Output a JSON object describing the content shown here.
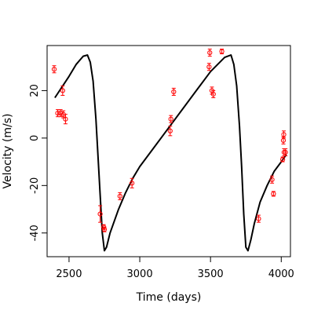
{
  "chart_data": {
    "type": "scatter",
    "xlabel": "Time (days)",
    "ylabel": "Velocity (m/s)",
    "xlim": [
      2345,
      4065
    ],
    "ylim": [
      -50,
      39
    ],
    "xticks": [
      2500,
      3000,
      3500,
      4000
    ],
    "yticks": [
      -40,
      -20,
      0,
      20
    ],
    "grid": false,
    "colors": {
      "points": "#ff0000",
      "curve": "#000000"
    },
    "series": [
      {
        "type": "scatter",
        "points": [
          {
            "x": 2395,
            "y": 29,
            "err": 1.5
          },
          {
            "x": 2420,
            "y": 10.5,
            "err": 1.5
          },
          {
            "x": 2440,
            "y": 10.5,
            "err": 1.5
          },
          {
            "x": 2455,
            "y": 20,
            "err": 2
          },
          {
            "x": 2460,
            "y": 10,
            "err": 1.5
          },
          {
            "x": 2475,
            "y": 8,
            "err": 2
          },
          {
            "x": 2720,
            "y": -32,
            "err": 3.5
          },
          {
            "x": 2745,
            "y": -37.5,
            "err": 1
          },
          {
            "x": 2750,
            "y": -38.5,
            "err": 1
          },
          {
            "x": 2860,
            "y": -24.5,
            "err": 1.5
          },
          {
            "x": 2945,
            "y": -19,
            "err": 2
          },
          {
            "x": 3215,
            "y": 3,
            "err": 2
          },
          {
            "x": 3220,
            "y": 8,
            "err": 1.5
          },
          {
            "x": 3240,
            "y": 19.5,
            "err": 1.5
          },
          {
            "x": 3490,
            "y": 30,
            "err": 1.5
          },
          {
            "x": 3495,
            "y": 36,
            "err": 1.5
          },
          {
            "x": 3510,
            "y": 20,
            "err": 1.5
          },
          {
            "x": 3520,
            "y": 18.5,
            "err": 1.5
          },
          {
            "x": 3580,
            "y": 36.5,
            "err": 1
          },
          {
            "x": 3840,
            "y": -34,
            "err": 1.5
          },
          {
            "x": 3935,
            "y": -17.5,
            "err": 1.5
          },
          {
            "x": 3945,
            "y": -23.5,
            "err": 1
          },
          {
            "x": 4010,
            "y": -9,
            "err": 1
          },
          {
            "x": 4015,
            "y": -1,
            "err": 1.5
          },
          {
            "x": 4018,
            "y": 1.5,
            "err": 1.5
          },
          {
            "x": 4020,
            "y": -6,
            "err": 1.5
          },
          {
            "x": 4030,
            "y": -6,
            "err": 1.5
          }
        ]
      },
      {
        "type": "line",
        "points": [
          [
            2400,
            17
          ],
          [
            2450,
            21.5
          ],
          [
            2500,
            26
          ],
          [
            2550,
            31
          ],
          [
            2600,
            34.5
          ],
          [
            2630,
            35
          ],
          [
            2650,
            32
          ],
          [
            2670,
            24
          ],
          [
            2690,
            8
          ],
          [
            2705,
            -8
          ],
          [
            2720,
            -24
          ],
          [
            2735,
            -40
          ],
          [
            2750,
            -47.5
          ],
          [
            2765,
            -46
          ],
          [
            2790,
            -40
          ],
          [
            2850,
            -30
          ],
          [
            2900,
            -23
          ],
          [
            2950,
            -17
          ],
          [
            3000,
            -12
          ],
          [
            3100,
            -4
          ],
          [
            3200,
            4
          ],
          [
            3300,
            12
          ],
          [
            3400,
            20
          ],
          [
            3500,
            28
          ],
          [
            3600,
            34
          ],
          [
            3645,
            35
          ],
          [
            3665,
            31
          ],
          [
            3685,
            22
          ],
          [
            3705,
            5
          ],
          [
            3720,
            -12
          ],
          [
            3735,
            -32
          ],
          [
            3750,
            -46
          ],
          [
            3765,
            -47.5
          ],
          [
            3785,
            -43
          ],
          [
            3810,
            -36
          ],
          [
            3850,
            -27
          ],
          [
            3900,
            -20
          ],
          [
            3950,
            -14
          ],
          [
            4000,
            -10
          ],
          [
            4035,
            -7
          ]
        ]
      }
    ]
  }
}
